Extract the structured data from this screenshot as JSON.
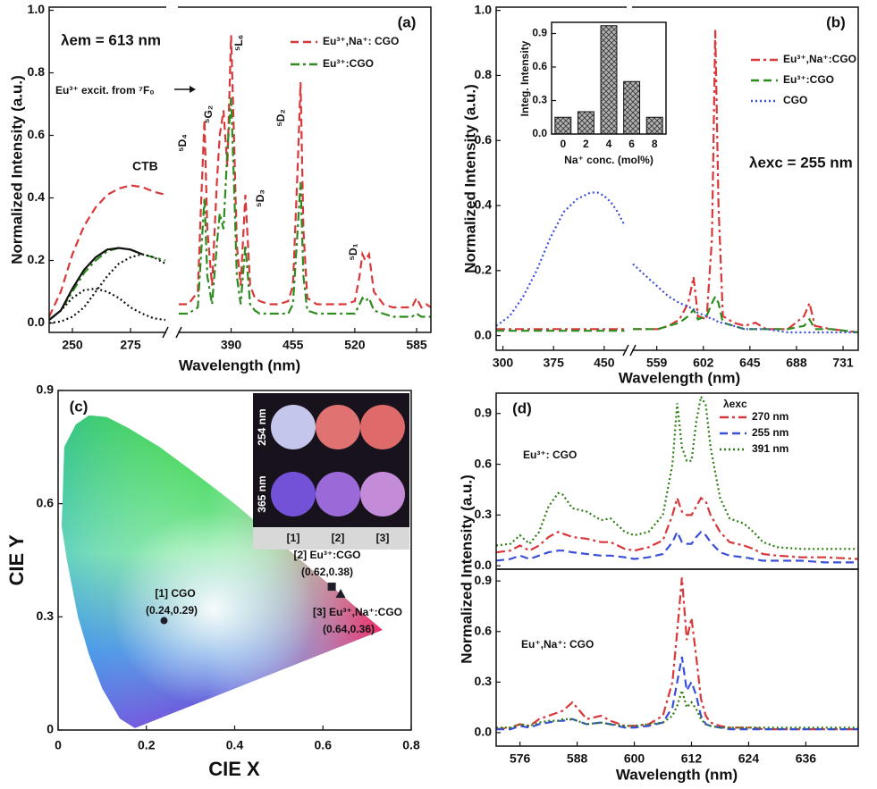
{
  "chart_data": [
    {
      "type": "line",
      "panel": "(a)",
      "xlabel": "Wavelength (nm)",
      "ylabel": "Normalized Intensity (a.u.)",
      "annotations": [
        "λem = 613 nm",
        "Eu³⁺ excit. from ⁷F₀",
        "CTB",
        "⁵D₄",
        "⁵G₂",
        "⁵L₆",
        "⁵D₃",
        "⁵D₂",
        "⁵D₁"
      ],
      "xlim": [
        240,
        600
      ],
      "xbreak": [
        290,
        335
      ],
      "xticks": [
        250,
        275,
        390,
        455,
        520,
        585
      ],
      "ylim": [
        -0.03,
        1.01
      ],
      "yticks": [
        {
          "value": 0,
          "label": "0.0"
        },
        0.2,
        0.4,
        0.6,
        0.8,
        {
          "value": 1,
          "label": "1.0"
        }
      ],
      "legend": "upper right",
      "x": [
        240,
        245,
        250,
        255,
        260,
        265,
        270,
        275,
        280,
        285,
        290,
        335,
        345,
        355,
        358,
        362,
        365,
        370,
        375,
        378,
        382,
        386,
        390,
        393,
        396,
        400,
        405,
        410,
        415,
        420,
        430,
        440,
        450,
        455,
        460,
        463,
        466,
        470,
        480,
        490,
        500,
        510,
        520,
        525,
        528,
        531,
        535,
        540,
        550,
        560,
        570,
        580,
        585,
        590,
        595,
        600
      ],
      "series": [
        {
          "name": "Eu³⁺,Na⁺: CGO",
          "color": "#d9383a",
          "style": "dash",
          "values": [
            0.02,
            0.1,
            0.22,
            0.31,
            0.37,
            0.41,
            0.43,
            0.44,
            0.435,
            0.42,
            0.41,
            0.06,
            0.06,
            0.1,
            0.35,
            0.65,
            0.3,
            0.12,
            0.45,
            0.6,
            0.68,
            0.5,
            0.92,
            0.6,
            0.25,
            0.12,
            0.41,
            0.12,
            0.08,
            0.07,
            0.06,
            0.06,
            0.07,
            0.12,
            0.5,
            0.77,
            0.3,
            0.08,
            0.06,
            0.06,
            0.06,
            0.06,
            0.07,
            0.15,
            0.22,
            0.2,
            0.22,
            0.1,
            0.06,
            0.05,
            0.05,
            0.05,
            0.08,
            0.05,
            0.06,
            0.05
          ]
        },
        {
          "name": "Eu³⁺:CGO",
          "color": "#2e8b1e",
          "style": "dashdot",
          "values": [
            0.01,
            0.04,
            0.1,
            0.16,
            0.2,
            0.23,
            0.24,
            0.235,
            0.22,
            0.21,
            0.2,
            0.03,
            0.03,
            0.05,
            0.2,
            0.4,
            0.15,
            0.06,
            0.25,
            0.35,
            0.3,
            0.55,
            0.72,
            0.45,
            0.15,
            0.06,
            0.25,
            0.06,
            0.04,
            0.03,
            0.03,
            0.03,
            0.03,
            0.06,
            0.3,
            0.45,
            0.15,
            0.04,
            0.03,
            0.03,
            0.03,
            0.03,
            0.03,
            0.06,
            0.08,
            0.07,
            0.08,
            0.04,
            0.03,
            0.02,
            0.02,
            0.02,
            0.03,
            0.02,
            0.02,
            0.02
          ]
        },
        {
          "color": "#111111",
          "style": "solid",
          "x": [
            240,
            245,
            250,
            255,
            260,
            265,
            270,
            275,
            280
          ],
          "values": [
            0.01,
            0.04,
            0.11,
            0.17,
            0.21,
            0.235,
            0.24,
            0.235,
            0.22
          ]
        },
        {
          "color": "#111111",
          "style": "dot",
          "x": [
            240,
            245,
            250,
            255,
            260,
            265,
            270,
            275,
            280,
            285,
            290
          ],
          "values": [
            0.01,
            0.04,
            0.08,
            0.105,
            0.11,
            0.1,
            0.08,
            0.05,
            0.03,
            0.015,
            0.01
          ]
        },
        {
          "color": "#111111",
          "style": "dot",
          "x": [
            240,
            245,
            250,
            255,
            260,
            265,
            270,
            275,
            280,
            285,
            290
          ],
          "values": [
            0,
            0.005,
            0.02,
            0.05,
            0.1,
            0.15,
            0.19,
            0.21,
            0.22,
            0.21,
            0.19
          ]
        }
      ]
    },
    {
      "type": "line",
      "panel": "(b)",
      "xlabel": "Wavelength (nm)",
      "ylabel": "Normalized Intensity (a.u.)",
      "annotations": [
        "λexc = 255 nm"
      ],
      "xlim": [
        290,
        745
      ],
      "xbreak": [
        482,
        537
      ],
      "xticks": [
        300,
        375,
        450,
        559,
        602,
        645,
        688,
        731
      ],
      "ylim": [
        -0.045,
        1.01
      ],
      "yticks": [
        {
          "value": 0,
          "label": "0.0"
        },
        0.2,
        0.4,
        0.6,
        0.8,
        {
          "value": 1,
          "label": "1.0"
        }
      ],
      "legend": "upper right",
      "x": [
        290,
        310,
        330,
        350,
        370,
        390,
        410,
        430,
        440,
        450,
        460,
        470,
        480,
        537,
        550,
        560,
        570,
        580,
        588,
        593,
        597,
        605,
        610,
        613,
        616,
        620,
        630,
        640,
        650,
        660,
        680,
        695,
        700,
        705,
        720,
        745
      ],
      "series": [
        {
          "name": "Eu³⁺,Na⁺:CGO",
          "color": "#d9383a",
          "style": "dashdot",
          "values": [
            0.02,
            0.02,
            0.02,
            0.02,
            0.02,
            0.02,
            0.02,
            0.02,
            0.02,
            0.02,
            0.02,
            0.02,
            0.02,
            0.02,
            0.02,
            0.02,
            0.03,
            0.05,
            0.1,
            0.18,
            0.06,
            0.05,
            0.3,
            0.94,
            0.4,
            0.06,
            0.04,
            0.03,
            0.04,
            0.02,
            0.02,
            0.06,
            0.1,
            0.03,
            0.02,
            0.01
          ]
        },
        {
          "name": "Eu³⁺:CGO",
          "color": "#2e8b1e",
          "style": "dash",
          "values": [
            0.015,
            0.015,
            0.015,
            0.015,
            0.015,
            0.015,
            0.015,
            0.015,
            0.015,
            0.015,
            0.015,
            0.015,
            0.015,
            0.02,
            0.02,
            0.02,
            0.03,
            0.04,
            0.06,
            0.08,
            0.05,
            0.06,
            0.1,
            0.12,
            0.1,
            0.04,
            0.03,
            0.02,
            0.02,
            0.02,
            0.02,
            0.03,
            0.05,
            0.02,
            0.02,
            0.01
          ]
        },
        {
          "name": "CGO",
          "color": "#3a4fd8",
          "style": "dot",
          "values": [
            0.03,
            0.06,
            0.12,
            0.2,
            0.3,
            0.38,
            0.42,
            0.44,
            0.44,
            0.43,
            0.41,
            0.38,
            0.34,
            0.22,
            0.18,
            0.15,
            0.12,
            0.1,
            0.09,
            0.08,
            0.07,
            0.06,
            0.05,
            0.05,
            0.04,
            0.04,
            0.03,
            0.02,
            0.02,
            0.02,
            0.01,
            0.01,
            0.01,
            0.01,
            0.01,
            0.01
          ]
        }
      ]
    },
    {
      "type": "bar",
      "xlabel": "Na⁺ conc. (mol%)",
      "ylabel": "Integ. Intensity",
      "categories": [
        "0",
        "2",
        "4",
        "6",
        "8"
      ],
      "values": [
        0.15,
        0.2,
        0.97,
        0.47,
        0.15
      ],
      "color": "#b0b0b0",
      "hatch": true,
      "ylim": [
        0,
        1
      ],
      "yticks": [
        {
          "value": 0,
          "label": "0.0"
        },
        0.3,
        0.6,
        0.9
      ]
    },
    {
      "type": "scatter",
      "panel": "(c)",
      "xlabel": "CIE X",
      "ylabel": "CIE Y",
      "xlim": [
        0,
        0.8
      ],
      "ylim": [
        0,
        0.9
      ],
      "xticks": [
        0,
        0.2,
        0.4,
        0.6,
        0.8
      ],
      "yticks": [
        0,
        0.3,
        0.6,
        0.9
      ],
      "inset_labels": [
        "254 nm",
        "365 nm",
        "[1]",
        "[2]",
        "[3]"
      ],
      "series": [
        {
          "color": "#1e1e2a",
          "markers": [
            "circle",
            "square",
            "triangle"
          ],
          "labels": [
            "[1] CGO",
            "[2] Eu³⁺:CGO",
            "[3] Eu³⁺,Na⁺:CGO"
          ],
          "x": [
            0.24,
            0.62,
            0.64
          ],
          "values": [
            0.29,
            0.38,
            0.36
          ],
          "value_labels": [
            "(0.24,0.29)",
            "(0.62,0.38)",
            "(0.64,0.36)"
          ]
        }
      ]
    },
    {
      "type": "line",
      "panel": "(d)",
      "ylabel": "Normalized Intensity (a.u.)",
      "annotations": [
        "Eu³⁺: CGO"
      ],
      "legend_title": "λexc",
      "legend": "upper right",
      "xlim": [
        571,
        647
      ],
      "ylim": [
        -0.02,
        1.02
      ],
      "yticks": [
        {
          "value": 0,
          "label": "0.0"
        },
        0.3,
        0.6,
        0.9
      ],
      "x": [
        571,
        574,
        576,
        578,
        580,
        582,
        584,
        585,
        587,
        590,
        593,
        595,
        598,
        600,
        603,
        606,
        608,
        609,
        610,
        611,
        612,
        613,
        614,
        615,
        616,
        618,
        620,
        623,
        625,
        627,
        630,
        635,
        640,
        647
      ],
      "series": [
        {
          "name": "270 nm",
          "color": "#d9383a",
          "style": "dashdot",
          "values": [
            0.08,
            0.09,
            0.12,
            0.09,
            0.12,
            0.17,
            0.2,
            0.19,
            0.17,
            0.16,
            0.14,
            0.14,
            0.1,
            0.09,
            0.11,
            0.15,
            0.3,
            0.4,
            0.32,
            0.3,
            0.3,
            0.35,
            0.4,
            0.38,
            0.3,
            0.2,
            0.14,
            0.12,
            0.1,
            0.07,
            0.06,
            0.05,
            0.05,
            0.04
          ]
        },
        {
          "name": "255 nm",
          "color": "#3a4fd8",
          "style": "dash",
          "values": [
            0.03,
            0.04,
            0.06,
            0.04,
            0.06,
            0.08,
            0.09,
            0.09,
            0.08,
            0.07,
            0.06,
            0.06,
            0.05,
            0.04,
            0.05,
            0.07,
            0.14,
            0.2,
            0.14,
            0.13,
            0.13,
            0.17,
            0.2,
            0.18,
            0.14,
            0.08,
            0.06,
            0.05,
            0.04,
            0.03,
            0.03,
            0.03,
            0.02,
            0.02
          ]
        },
        {
          "name": "391 nm",
          "color": "#2a7d10",
          "style": "dot",
          "values": [
            0.12,
            0.13,
            0.18,
            0.13,
            0.2,
            0.35,
            0.43,
            0.42,
            0.34,
            0.32,
            0.27,
            0.28,
            0.2,
            0.18,
            0.2,
            0.3,
            0.6,
            0.96,
            0.7,
            0.62,
            0.62,
            0.85,
            1.0,
            0.95,
            0.7,
            0.4,
            0.28,
            0.25,
            0.2,
            0.14,
            0.11,
            0.1,
            0.1,
            0.1
          ]
        }
      ]
    },
    {
      "type": "line",
      "xlabel": "Wavelength (nm)",
      "annotations": [
        "Eu⁺,Na⁺: CGO"
      ],
      "xlim": [
        571,
        647
      ],
      "xticks": [
        576,
        588,
        600,
        612,
        624,
        636
      ],
      "ylim": [
        -0.08,
        0.97
      ],
      "yticks": [
        {
          "value": 0,
          "label": "0.0"
        },
        0.3,
        0.6,
        0.9
      ],
      "x": [
        571,
        574,
        576,
        578,
        580,
        582,
        584,
        585,
        587,
        590,
        593,
        595,
        598,
        600,
        603,
        606,
        608,
        609,
        610,
        611,
        612,
        613,
        614,
        615,
        616,
        618,
        620,
        623,
        625,
        627,
        630,
        635,
        640,
        647
      ],
      "series": [
        {
          "color": "#d9383a",
          "style": "dashdot",
          "values": [
            0.02,
            0.03,
            0.05,
            0.04,
            0.08,
            0.1,
            0.12,
            0.13,
            0.18,
            0.08,
            0.1,
            0.07,
            0.04,
            0.04,
            0.05,
            0.1,
            0.3,
            0.6,
            0.92,
            0.55,
            0.68,
            0.45,
            0.2,
            0.1,
            0.06,
            0.04,
            0.03,
            0.03,
            0.03,
            0.02,
            0.02,
            0.02,
            0.02,
            0.02
          ]
        },
        {
          "color": "#3a4fd8",
          "style": "dash",
          "values": [
            0.02,
            0.02,
            0.04,
            0.03,
            0.05,
            0.06,
            0.07,
            0.07,
            0.08,
            0.05,
            0.06,
            0.05,
            0.03,
            0.03,
            0.04,
            0.06,
            0.15,
            0.3,
            0.45,
            0.25,
            0.3,
            0.22,
            0.1,
            0.05,
            0.04,
            0.03,
            0.02,
            0.02,
            0.02,
            0.02,
            0.02,
            0.02,
            0.02,
            0.02
          ]
        },
        {
          "color": "#2a7d10",
          "style": "dot",
          "values": [
            0.03,
            0.03,
            0.05,
            0.04,
            0.06,
            0.07,
            0.07,
            0.08,
            0.08,
            0.05,
            0.06,
            0.05,
            0.04,
            0.04,
            0.05,
            0.06,
            0.1,
            0.16,
            0.25,
            0.15,
            0.18,
            0.14,
            0.08,
            0.05,
            0.04,
            0.03,
            0.03,
            0.03,
            0.03,
            0.03,
            0.03,
            0.03,
            0.03,
            0.03
          ]
        }
      ]
    }
  ]
}
